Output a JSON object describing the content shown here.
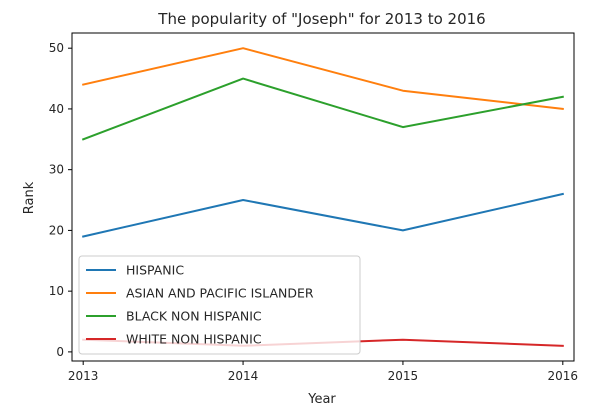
{
  "chart_data": {
    "type": "line",
    "title": "The popularity of \"Joseph\" for 2013 to 2016",
    "xlabel": "Year",
    "ylabel": "Rank",
    "x": [
      2013,
      2014,
      2015,
      2016
    ],
    "xlim": [
      2012.93,
      2016.07
    ],
    "ylim": [
      -1.5,
      52.5
    ],
    "xticks": [
      2013,
      2014,
      2015,
      2016
    ],
    "yticks": [
      0,
      10,
      20,
      30,
      40,
      50
    ],
    "grid": false,
    "legend_position": "lower-left",
    "series": [
      {
        "name": "HISPANIC",
        "values": [
          19,
          25,
          20,
          26
        ],
        "color": "#1f77b4"
      },
      {
        "name": "ASIAN AND PACIFIC ISLANDER",
        "values": [
          44,
          50,
          43,
          40
        ],
        "color": "#ff7f0e"
      },
      {
        "name": "BLACK NON HISPANIC",
        "values": [
          35,
          45,
          37,
          42
        ],
        "color": "#2ca02c"
      },
      {
        "name": "WHITE NON HISPANIC",
        "values": [
          2,
          1,
          2,
          1
        ],
        "color": "#d62728"
      }
    ]
  }
}
